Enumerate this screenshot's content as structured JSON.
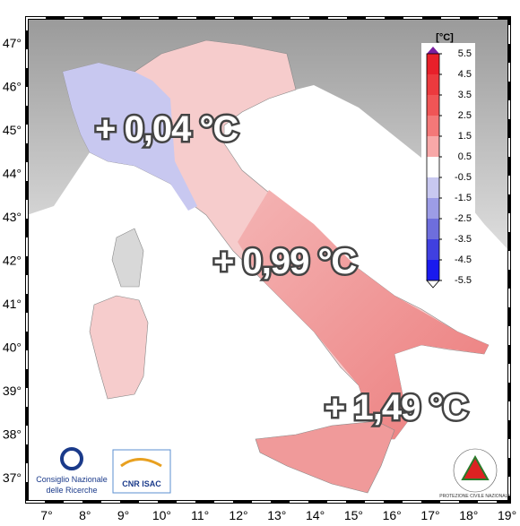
{
  "map": {
    "lat_labels": [
      "47°",
      "46°",
      "45°",
      "44°",
      "43°",
      "42°",
      "41°",
      "40°",
      "39°",
      "38°",
      "37°"
    ],
    "lon_labels": [
      "7°",
      "8°",
      "9°",
      "10°",
      "11°",
      "12°",
      "13°",
      "14°",
      "15°",
      "16°",
      "17°",
      "18°",
      "19°"
    ],
    "annotations": [
      "+ 0,04 °C",
      "+ 0,99 °C",
      "+ 1,49 °C"
    ]
  },
  "colorbar": {
    "unit": "[°C]",
    "ticks": [
      "5.5",
      "4.5",
      "3.5",
      "2.5",
      "1.5",
      "0.5",
      "-0.5",
      "-1.5",
      "-2.5",
      "-3.5",
      "-4.5",
      "-5.5"
    ],
    "colors": [
      "#e8202a",
      "#ec3a3e",
      "#f05556",
      "#f47878",
      "#f8a8a8",
      "#ffffff",
      "#c8c8f0",
      "#9c9ce6",
      "#6e6edc",
      "#4040e0",
      "#1a1aee"
    ]
  },
  "logos": {
    "cnr_line1": "Consiglio Nazionale",
    "cnr_line2": "delle Ricerche",
    "isac": "CNR ISAC",
    "protezione": "PROTEZIONE CIVILE NAZIONALE"
  }
}
